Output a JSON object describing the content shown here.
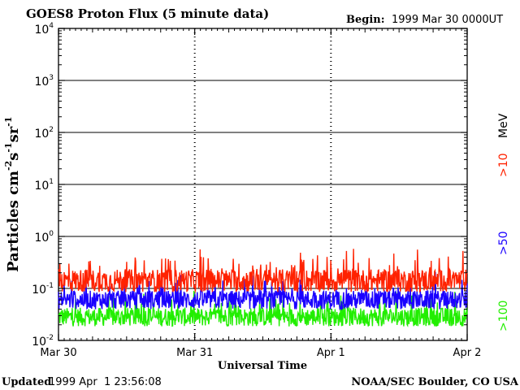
{
  "chart_data": {
    "type": "line",
    "title": "GOES8 Proton Flux (5 minute data)",
    "begin_label": "Begin:",
    "begin_value": "1999 Mar 30 0000UT",
    "xlabel": "Universal Time",
    "ylabel_main": "Particles cm",
    "ylabel_exp1": "-2",
    "ylabel_s": "s",
    "ylabel_exp2": "-1",
    "ylabel_sr": "sr",
    "ylabel_exp3": "-1",
    "ylabel_log_scale": true,
    "ylim_log10": [
      -2,
      4
    ],
    "y_ticks": [
      {
        "base": "10",
        "exp": "4"
      },
      {
        "base": "10",
        "exp": "3"
      },
      {
        "base": "10",
        "exp": "2"
      },
      {
        "base": "10",
        "exp": "1"
      },
      {
        "base": "10",
        "exp": "0"
      },
      {
        "base": "10",
        "exp": "-1"
      },
      {
        "base": "10",
        "exp": "-2"
      }
    ],
    "x_ticks": [
      "Mar 30",
      "Mar 31",
      "Apr 1",
      "Apr 2"
    ],
    "x_days": 3,
    "grid": true,
    "series": [
      {
        "name": ">10",
        "color": "#ff2200",
        "log10_mean": -0.85,
        "log10_spread": 0.22
      },
      {
        "name": ">50",
        "color": "#1a00ff",
        "log10_mean": -1.22,
        "log10_spread": 0.18
      },
      {
        "name": ">100",
        "color": "#22ee00",
        "log10_mean": -1.55,
        "log10_spread": 0.18
      }
    ],
    "unit_label": "MeV"
  },
  "footer": {
    "updated_label": "Updated",
    "updated_value": "1999 Apr  1 23:56:08",
    "org": "NOAA/SEC Boulder, CO USA"
  }
}
